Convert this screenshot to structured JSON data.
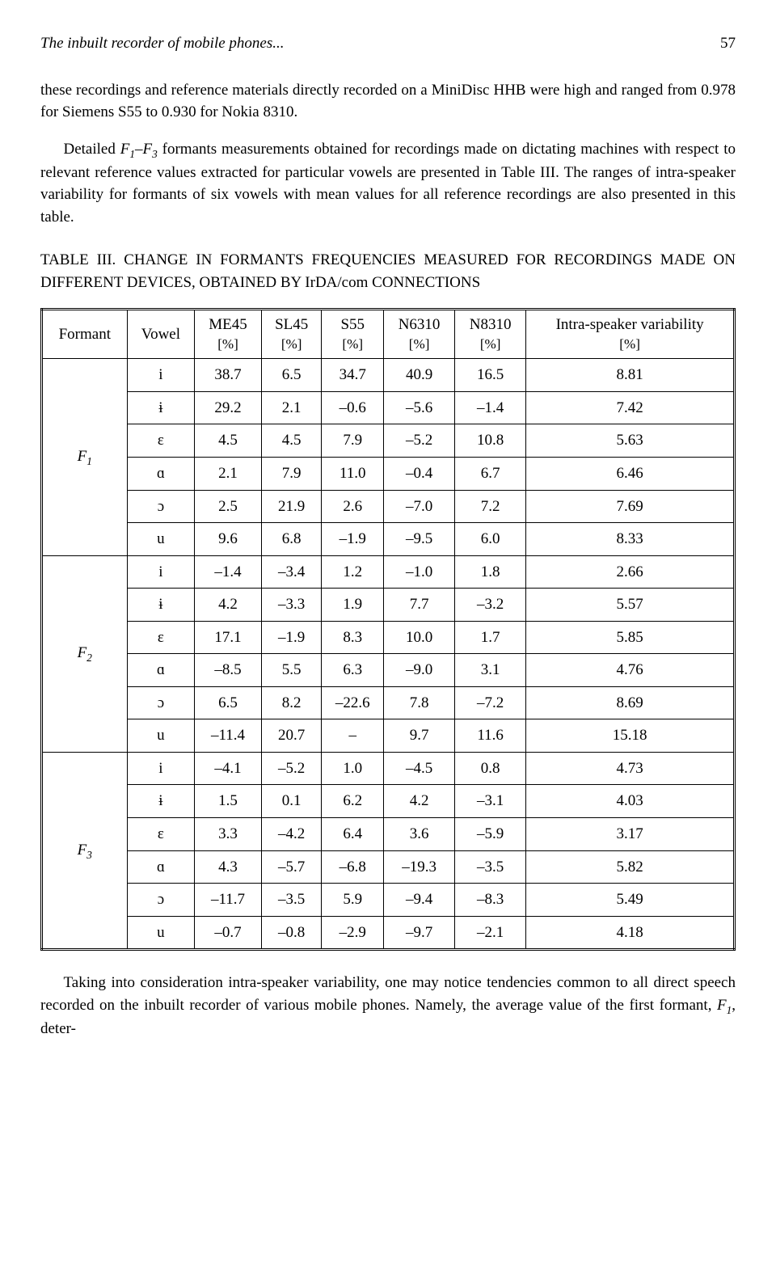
{
  "header": {
    "running_title": "The inbuilt recorder of mobile phones...",
    "page_number": "57"
  },
  "paragraphs": {
    "p1": "these recordings and reference materials directly recorded on a MiniDisc HHB were high and ranged from 0.978 for Siemens S55 to 0.930 for Nokia 8310.",
    "p2_prefix": "Detailed ",
    "p2_f1": "F",
    "p2_s1": "1",
    "p2_dash": "–",
    "p2_f3": "F",
    "p2_s3": "3",
    "p2_rest": " formants measurements obtained for recordings made on dictating machines with respect to relevant reference values extracted for particular vowels are presented in Table III. The ranges of intra-speaker variability for formants of six vowels with mean values for all reference recordings are also presented in this table.",
    "caption": "TABLE III. CHANGE IN FORMANTS FREQUENCIES MEASURED FOR RECORDINGS MADE ON DIFFERENT DEVICES, OBTAINED BY IrDA/com CONNECTIONS",
    "p3_prefix": "Taking into consideration intra-speaker variability, one may notice tendencies common to all direct speech recorded on the inbuilt recorder of various mobile phones. Namely, the average value of the first formant, ",
    "p3_f1": "F",
    "p3_s1": "1",
    "p3_suffix": ", deter-"
  },
  "table": {
    "columns": {
      "formant": "Formant",
      "vowel": "Vowel",
      "me45": "ME45",
      "sl45": "SL45",
      "s55": "S55",
      "n6310": "N6310",
      "n8310": "N8310",
      "intra": "Intra-speaker variability",
      "unit": "[%]"
    },
    "formants": {
      "f1_label": "F",
      "f1_sub": "1",
      "f2_label": "F",
      "f2_sub": "2",
      "f3_label": "F",
      "f3_sub": "3"
    },
    "vowels": [
      "i",
      "ɨ",
      "ɛ",
      "ɑ",
      "ɔ",
      "u"
    ],
    "f1_rows": [
      [
        "38.7",
        "6.5",
        "34.7",
        "40.9",
        "16.5",
        "8.81"
      ],
      [
        "29.2",
        "2.1",
        "–0.6",
        "–5.6",
        "–1.4",
        "7.42"
      ],
      [
        "4.5",
        "4.5",
        "7.9",
        "–5.2",
        "10.8",
        "5.63"
      ],
      [
        "2.1",
        "7.9",
        "11.0",
        "–0.4",
        "6.7",
        "6.46"
      ],
      [
        "2.5",
        "21.9",
        "2.6",
        "–7.0",
        "7.2",
        "7.69"
      ],
      [
        "9.6",
        "6.8",
        "–1.9",
        "–9.5",
        "6.0",
        "8.33"
      ]
    ],
    "f2_rows": [
      [
        "–1.4",
        "–3.4",
        "1.2",
        "–1.0",
        "1.8",
        "2.66"
      ],
      [
        "4.2",
        "–3.3",
        "1.9",
        "7.7",
        "–3.2",
        "5.57"
      ],
      [
        "17.1",
        "–1.9",
        "8.3",
        "10.0",
        "1.7",
        "5.85"
      ],
      [
        "–8.5",
        "5.5",
        "6.3",
        "–9.0",
        "3.1",
        "4.76"
      ],
      [
        "6.5",
        "8.2",
        "–22.6",
        "7.8",
        "–7.2",
        "8.69"
      ],
      [
        "–11.4",
        "20.7",
        "–",
        "9.7",
        "11.6",
        "15.18"
      ]
    ],
    "f3_rows": [
      [
        "–4.1",
        "–5.2",
        "1.0",
        "–4.5",
        "0.8",
        "4.73"
      ],
      [
        "1.5",
        "0.1",
        "6.2",
        "4.2",
        "–3.1",
        "4.03"
      ],
      [
        "3.3",
        "–4.2",
        "6.4",
        "3.6",
        "–5.9",
        "3.17"
      ],
      [
        "4.3",
        "–5.7",
        "–6.8",
        "–19.3",
        "–3.5",
        "5.82"
      ],
      [
        "–11.7",
        "–3.5",
        "5.9",
        "–9.4",
        "–8.3",
        "5.49"
      ],
      [
        "–0.7",
        "–0.8",
        "–2.9",
        "–9.7",
        "–2.1",
        "4.18"
      ]
    ]
  }
}
